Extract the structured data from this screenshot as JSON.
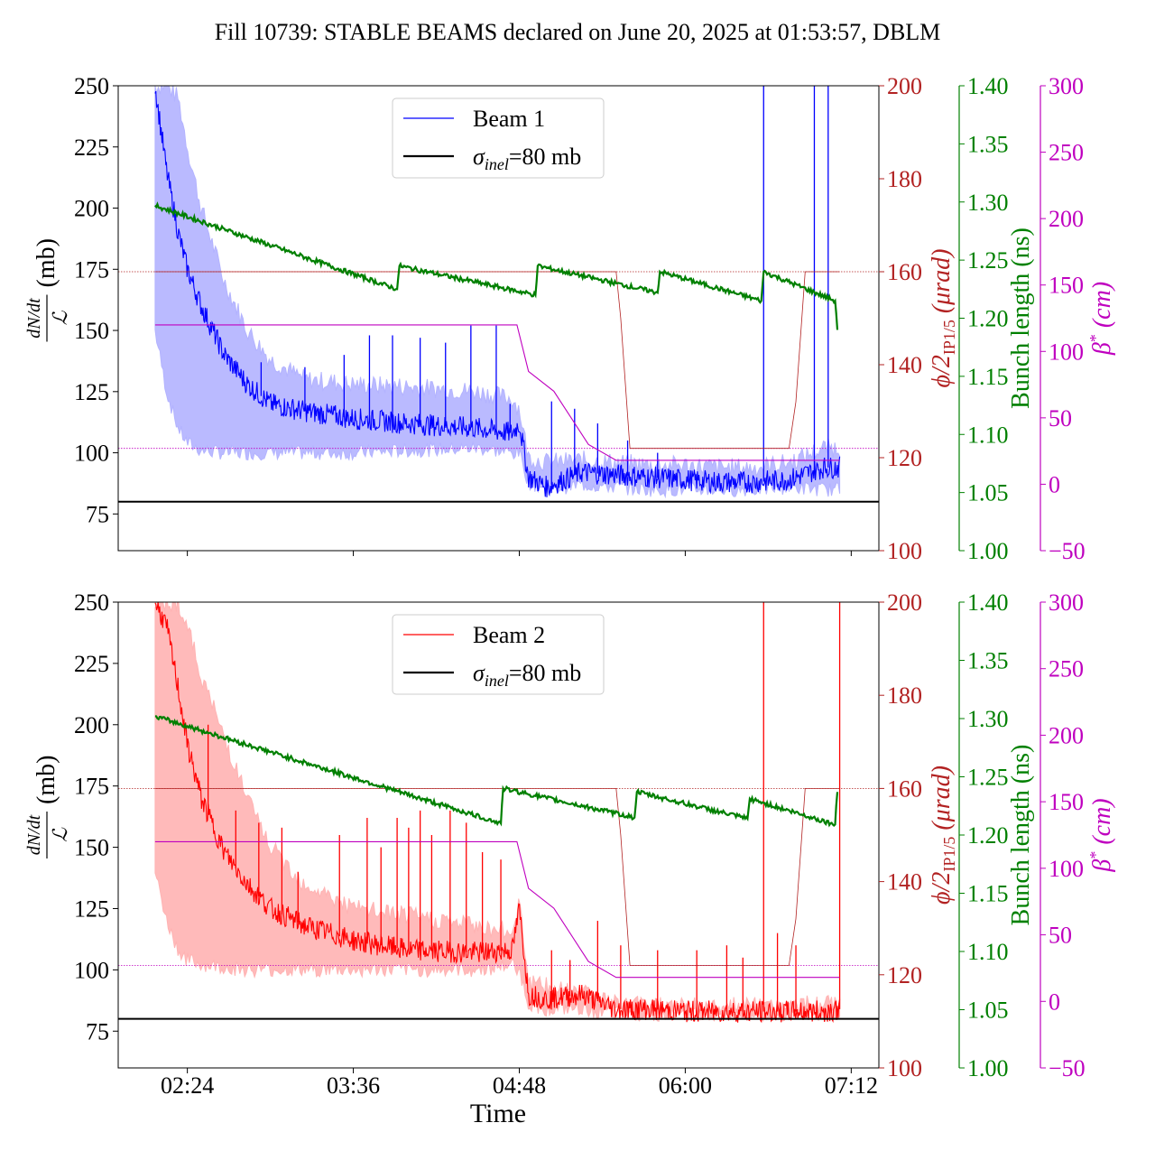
{
  "title": "Fill 10739: STABLE BEAMS declared on June 20, 2025 at 01:53:57, DBLM",
  "colors": {
    "beam1": "#0000ff",
    "beam1_band": "#b3b3ff",
    "beam2": "#ff0000",
    "beam2_band": "#ffb3b3",
    "inel": "#000000",
    "crossing": "#b22222",
    "bunch": "#008000",
    "beta": "#bf00bf"
  },
  "chart_data": {
    "type": "line",
    "xlabel": "Time",
    "x_ticks": [
      "02:24",
      "03:36",
      "04:48",
      "06:00",
      "07:12"
    ],
    "xlim": [
      "01:54",
      "07:24"
    ],
    "grid": false,
    "legend_placement": "upper center",
    "left_axis": {
      "label_fraction_top": "dN/dt",
      "label_fraction_bottom": "ℒ",
      "label_unit": "(mb)",
      "ylim": [
        60,
        250
      ],
      "ticks": [
        75,
        100,
        125,
        150,
        175,
        200,
        225,
        250
      ]
    },
    "right_axes": [
      {
        "label_prefix": "ϕ/2",
        "label_sub": "IP1/5",
        "label_unit": "(μrad)",
        "ylim": [
          100,
          200
        ],
        "ticks": [
          100,
          120,
          140,
          160,
          180,
          200
        ]
      },
      {
        "label": "Bunch length (ns)",
        "ylim": [
          1.0,
          1.4
        ],
        "ticks": [
          "1.00",
          "1.05",
          "1.10",
          "1.15",
          "1.20",
          "1.25",
          "1.30",
          "1.35",
          "1.40"
        ]
      },
      {
        "label_prefix": "β",
        "label_unit": "(cm)",
        "ylim": [
          -50,
          300
        ],
        "ticks": [
          "−50",
          "0",
          "50",
          "100",
          "150",
          "200",
          "250",
          "300"
        ]
      }
    ],
    "panels": [
      {
        "legend": [
          {
            "label": "Beam 1",
            "kind": "beam"
          },
          {
            "label_prefix": "σ",
            "label_sub": "inel",
            "label_rest": "=80 mb",
            "kind": "inel"
          }
        ],
        "inel_mb": 80,
        "x": [
          "02:10",
          "02:15",
          "02:20",
          "02:24",
          "02:30",
          "02:40",
          "02:50",
          "03:00",
          "03:15",
          "03:36",
          "04:00",
          "04:30",
          "04:45",
          "04:48",
          "04:52",
          "05:00",
          "05:15",
          "05:30",
          "05:45",
          "06:00",
          "06:15",
          "06:30",
          "06:45",
          "07:00",
          "07:07"
        ],
        "mean": [
          250,
          215,
          190,
          175,
          160,
          140,
          128,
          120,
          117,
          114,
          112,
          110,
          108,
          112,
          90,
          86,
          92,
          91,
          90,
          89,
          88,
          88,
          89,
          94,
          94
        ],
        "band_low": [
          150,
          125,
          110,
          104,
          101,
          100,
          100,
          100,
          100,
          100,
          101,
          102,
          100,
          100,
          88,
          85,
          87,
          86,
          85,
          85,
          85,
          85,
          86,
          85,
          85
        ],
        "band_high": [
          250,
          250,
          245,
          225,
          200,
          170,
          150,
          138,
          130,
          128,
          127,
          125,
          122,
          118,
          98,
          96,
          97,
          96,
          95,
          95,
          94,
          94,
          96,
          102,
          102
        ],
        "spikes": [
          {
            "t": "02:56",
            "v": 137
          },
          {
            "t": "03:15",
            "v": 135
          },
          {
            "t": "03:32",
            "v": 140
          },
          {
            "t": "03:43",
            "v": 148
          },
          {
            "t": "03:53",
            "v": 148
          },
          {
            "t": "04:05",
            "v": 147
          },
          {
            "t": "04:16",
            "v": 145
          },
          {
            "t": "04:27",
            "v": 152
          },
          {
            "t": "04:38",
            "v": 152
          },
          {
            "t": "04:44",
            "v": 120
          },
          {
            "t": "05:02",
            "v": 121
          },
          {
            "t": "05:12",
            "v": 118
          },
          {
            "t": "05:22",
            "v": 112
          },
          {
            "t": "05:35",
            "v": 105
          },
          {
            "t": "05:48",
            "v": 100
          },
          {
            "t": "06:34",
            "v": 250
          },
          {
            "t": "06:56",
            "v": 250
          },
          {
            "t": "07:02",
            "v": 250
          }
        ],
        "bunch_length": {
          "x": [
            "02:10",
            "03:55",
            "03:56",
            "04:55",
            "04:56",
            "05:48",
            "05:49",
            "06:33",
            "06:34",
            "07:05",
            "07:06"
          ],
          "y": [
            1.297,
            1.225,
            1.245,
            1.22,
            1.245,
            1.222,
            1.24,
            1.215,
            1.24,
            1.215,
            1.19
          ]
        },
        "crossing_angle": {
          "x": [
            "02:10",
            "05:30",
            "05:32",
            "05:36",
            "05:40",
            "06:45",
            "06:48",
            "06:52",
            "07:07"
          ],
          "y": [
            160,
            160,
            150,
            122,
            122,
            122,
            132,
            160,
            160
          ],
          "reference_lines": [
            160,
            122
          ]
        },
        "beta_star": {
          "x": [
            "02:10",
            "04:47",
            "04:52",
            "05:03",
            "05:18",
            "05:30",
            "07:07"
          ],
          "y": [
            120,
            120,
            85,
            70,
            30,
            18,
            18
          ]
        }
      },
      {
        "legend": [
          {
            "label": "Beam 2",
            "kind": "beam"
          },
          {
            "label_prefix": "σ",
            "label_sub": "inel",
            "label_rest": "=80 mb",
            "kind": "inel"
          }
        ],
        "inel_mb": 80,
        "x": [
          "02:10",
          "02:15",
          "02:20",
          "02:24",
          "02:30",
          "02:40",
          "02:50",
          "03:00",
          "03:15",
          "03:36",
          "04:00",
          "04:30",
          "04:45",
          "04:48",
          "04:52",
          "05:00",
          "05:15",
          "05:30",
          "05:45",
          "06:00",
          "06:15",
          "06:30",
          "06:45",
          "07:00",
          "07:07"
        ],
        "mean": [
          250,
          240,
          215,
          192,
          170,
          148,
          135,
          125,
          118,
          112,
          108,
          107,
          108,
          125,
          90,
          88,
          90,
          84,
          84,
          83,
          83,
          83,
          83,
          83,
          84
        ],
        "band_low": [
          140,
          120,
          108,
          104,
          102,
          101,
          100,
          100,
          100,
          100,
          100,
          100,
          102,
          100,
          86,
          84,
          84,
          82,
          82,
          82,
          82,
          82,
          82,
          82,
          82
        ],
        "band_high": [
          250,
          250,
          250,
          240,
          220,
          195,
          170,
          150,
          135,
          125,
          122,
          118,
          115,
          130,
          95,
          93,
          92,
          86,
          86,
          85,
          85,
          85,
          85,
          86,
          86
        ],
        "spikes": [
          {
            "t": "02:33",
            "v": 200
          },
          {
            "t": "02:45",
            "v": 165
          },
          {
            "t": "02:55",
            "v": 160
          },
          {
            "t": "03:05",
            "v": 158
          },
          {
            "t": "03:12",
            "v": 140
          },
          {
            "t": "03:30",
            "v": 155
          },
          {
            "t": "03:42",
            "v": 162
          },
          {
            "t": "03:48",
            "v": 150
          },
          {
            "t": "03:55",
            "v": 162
          },
          {
            "t": "04:00",
            "v": 158
          },
          {
            "t": "04:05",
            "v": 165
          },
          {
            "t": "04:10",
            "v": 155
          },
          {
            "t": "04:18",
            "v": 165
          },
          {
            "t": "04:25",
            "v": 160
          },
          {
            "t": "04:32",
            "v": 148
          },
          {
            "t": "04:40",
            "v": 145
          },
          {
            "t": "05:02",
            "v": 108
          },
          {
            "t": "05:10",
            "v": 104
          },
          {
            "t": "05:22",
            "v": 120
          },
          {
            "t": "05:32",
            "v": 110
          },
          {
            "t": "05:48",
            "v": 108
          },
          {
            "t": "06:05",
            "v": 108
          },
          {
            "t": "06:18",
            "v": 110
          },
          {
            "t": "06:25",
            "v": 105
          },
          {
            "t": "06:34",
            "v": 250
          },
          {
            "t": "06:40",
            "v": 115
          },
          {
            "t": "06:48",
            "v": 110
          },
          {
            "t": "07:07",
            "v": 250
          }
        ],
        "bunch_length": {
          "x": [
            "02:10",
            "04:40",
            "04:41",
            "05:38",
            "05:39",
            "06:27",
            "06:28",
            "07:05",
            "07:06"
          ],
          "y": [
            1.302,
            1.21,
            1.24,
            1.215,
            1.237,
            1.214,
            1.231,
            1.209,
            1.237
          ]
        },
        "crossing_angle": {
          "x": [
            "02:10",
            "05:30",
            "05:32",
            "05:36",
            "05:40",
            "06:45",
            "06:48",
            "06:52",
            "07:07"
          ],
          "y": [
            160,
            160,
            150,
            122,
            122,
            122,
            132,
            160,
            160
          ],
          "reference_lines": [
            160,
            122
          ]
        },
        "beta_star": {
          "x": [
            "02:10",
            "04:47",
            "04:52",
            "05:03",
            "05:18",
            "05:30",
            "07:07"
          ],
          "y": [
            120,
            120,
            85,
            70,
            30,
            18,
            18
          ]
        }
      }
    ]
  }
}
